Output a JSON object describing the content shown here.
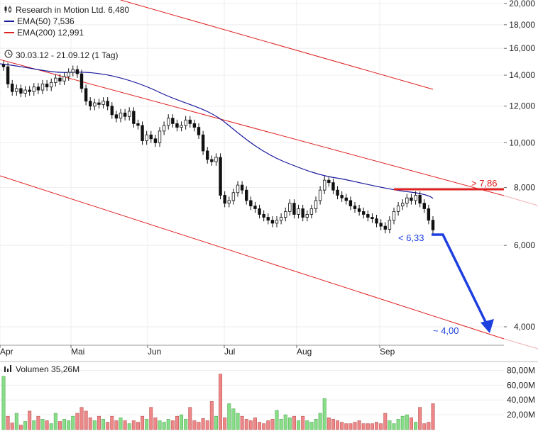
{
  "legend": {
    "stock_label": "Research in Motion Ltd. 6,480",
    "ema50_label": "EMA(50) 7,536",
    "ema200_label": "EMA(200) 12,991"
  },
  "date_range": "30.03.12 - 21.09.12 (1 Tag)",
  "volume_label": "Volumen 35,26M",
  "colors": {
    "ema50": "#1a1a9e",
    "ema200": "#e02020",
    "up": "#88dd88",
    "down": "#ee8888",
    "annotation_blue": "#1e3fe0",
    "channel": "#e02020"
  },
  "chart_data": {
    "type": "candlestick",
    "y_scale": "log",
    "ylim": [
      3.5,
      20.5
    ],
    "y_ticks": [
      4,
      6,
      8,
      10,
      12,
      14,
      16,
      18,
      20
    ],
    "y_tick_labels": [
      "4,000",
      "6,000",
      "8,000",
      "10,000",
      "12,000",
      "14,000",
      "16,000",
      "18,000",
      "20,000"
    ],
    "x_labels": [
      "Apr",
      "Mai",
      "Jun",
      "Jul",
      "Aug",
      "Sep"
    ],
    "close": [
      14.6,
      13.4,
      12.9,
      13.1,
      12.8,
      13.0,
      12.9,
      13.2,
      13.0,
      13.4,
      13.2,
      13.5,
      13.8,
      13.6,
      13.9,
      14.2,
      14.4,
      14.1,
      13.1,
      12.3,
      12.0,
      12.2,
      12.1,
      12.3,
      12.0,
      11.5,
      11.3,
      11.6,
      11.4,
      11.7,
      11.0,
      10.9,
      10.1,
      10.4,
      10.2,
      10.0,
      10.6,
      10.9,
      11.3,
      11.0,
      10.8,
      10.9,
      11.2,
      11.0,
      10.8,
      10.4,
      9.6,
      9.2,
      9.1,
      9.3,
      7.7,
      7.4,
      7.5,
      7.8,
      8.1,
      7.9,
      7.5,
      7.3,
      7.2,
      7.0,
      6.9,
      6.8,
      6.7,
      6.8,
      6.9,
      7.1,
      7.4,
      7.0,
      7.2,
      6.9,
      7.0,
      7.2,
      7.5,
      7.9,
      8.3,
      8.2,
      7.9,
      7.7,
      7.6,
      7.5,
      7.3,
      7.2,
      7.1,
      7.0,
      6.9,
      6.85,
      6.7,
      6.6,
      6.5,
      6.8,
      7.1,
      7.3,
      7.4,
      7.6,
      7.5,
      7.7,
      7.4,
      7.2,
      6.8,
      6.48
    ],
    "volume_millions": [
      72,
      18,
      9,
      22,
      6,
      11,
      25,
      12,
      18,
      14,
      12,
      8,
      22,
      11,
      14,
      12,
      18,
      22,
      30,
      25,
      16,
      12,
      18,
      14,
      10,
      18,
      12,
      16,
      12,
      8,
      12,
      10,
      18,
      14,
      30,
      16,
      12,
      10,
      14,
      12,
      18,
      20,
      14,
      30,
      12,
      10,
      15,
      12,
      38,
      18,
      75,
      16,
      35,
      28,
      22,
      18,
      14,
      12,
      16,
      10,
      8,
      12,
      14,
      26,
      14,
      20,
      16,
      18,
      12,
      18,
      12,
      10,
      14,
      22,
      42,
      16,
      14,
      12,
      10,
      8,
      8,
      10,
      12,
      8,
      8,
      8,
      10,
      8,
      22,
      12,
      8,
      14,
      18,
      20,
      16,
      10,
      30,
      8,
      10,
      35
    ],
    "volume_ticks": [
      20,
      40,
      60,
      80
    ],
    "volume_tick_labels": [
      "20,00M",
      "40,00M",
      "60,00M",
      "80,00M"
    ],
    "annotations": [
      {
        "text": "> 7,86",
        "price": 7.86
      },
      {
        "text": "< 6,33",
        "price": 6.33
      },
      {
        "text": "~ 4,00",
        "price": 4.0
      }
    ]
  }
}
